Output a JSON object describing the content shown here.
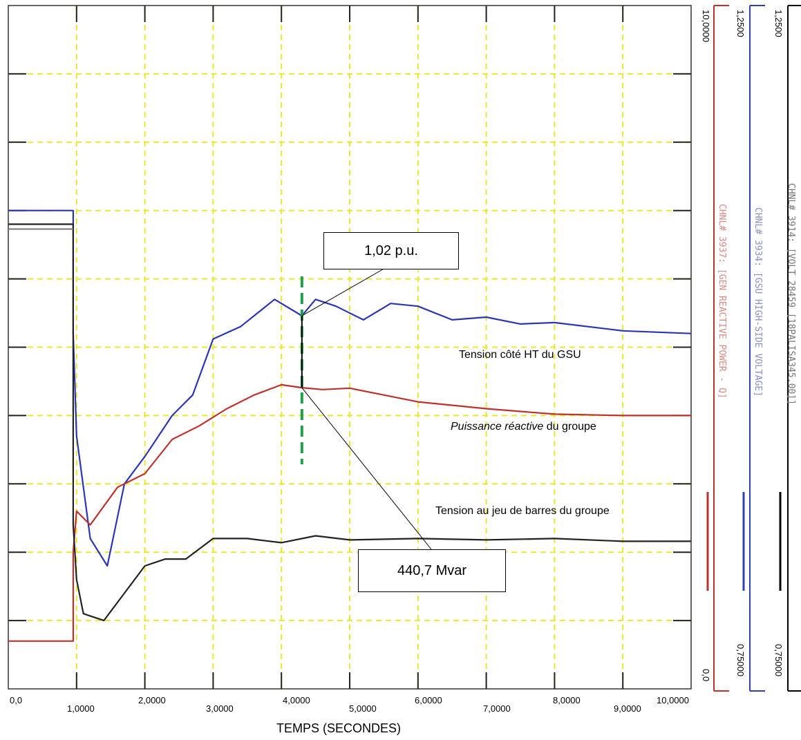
{
  "chart_data": {
    "type": "line",
    "xlabel": "TEMPS (SECONDES)",
    "xlim": [
      0,
      10
    ],
    "x_ticks": [
      "0,0",
      "1,0000",
      "2,0000",
      "3,0000",
      "4,0000",
      "5,0000",
      "6,0000",
      "7,0000",
      "8,0000",
      "9,0000",
      "10,0000"
    ],
    "grid": true,
    "y_axes": [
      {
        "channel_label": "CHNL# 3937: [GEN REACTIVE POWER - Q]",
        "min_label": "0,0",
        "max_label": "10,0000",
        "color": "#c0302a"
      },
      {
        "channel_label": "CHNL# 3934: [GSU HIGH-SIDE VOLTAGE]",
        "min_label": "0,75000",
        "max_label": "1,2500",
        "color": "#3040b8"
      },
      {
        "channel_label": "CHNL# 3914: [VOLT 28459 [18PALISA345.00]]",
        "min_label": "0,75000",
        "max_label": "1,2500",
        "color": "#000000"
      }
    ],
    "series": [
      {
        "color": "#2a35b5",
        "x": [
          0,
          0.95,
          0.95,
          1.0,
          1.2,
          1.45,
          1.7,
          2.0,
          2.4,
          2.7,
          3.0,
          3.4,
          3.9,
          4.3,
          4.5,
          4.8,
          5.2,
          5.6,
          6.0,
          6.5,
          7.0,
          7.5,
          8.0,
          9.0,
          10.0
        ],
        "y": [
          1.1,
          1.1,
          1.01,
          0.935,
          0.86,
          0.84,
          0.9,
          0.92,
          0.95,
          0.965,
          1.006,
          1.015,
          1.035,
          1.023,
          1.035,
          1.03,
          1.02,
          1.032,
          1.03,
          1.02,
          1.022,
          1.017,
          1.018,
          1.012,
          1.01
        ]
      },
      {
        "color": "#c0302a",
        "x": [
          0,
          0.95,
          0.95,
          1.0,
          1.2,
          1.6,
          2.0,
          2.4,
          2.8,
          3.2,
          3.6,
          4.0,
          4.3,
          4.6,
          5.0,
          5.5,
          6.0,
          7.0,
          8.0,
          9.0,
          10.0
        ],
        "y": [
          0.7,
          0.7,
          2.0,
          2.6,
          2.4,
          2.95,
          3.15,
          3.65,
          3.9,
          4.5,
          5.05,
          4.35,
          4.4,
          4.3,
          4.4,
          4.25,
          4.2,
          3.95,
          4.05,
          4.0,
          4.0
        ],
        "y_display": [
          0.7,
          0.7,
          2.0,
          2.6,
          2.4,
          2.95,
          3.15,
          3.65,
          3.85,
          4.1,
          4.3,
          4.45,
          4.407,
          4.38,
          4.4,
          4.3,
          4.2,
          4.1,
          4.02,
          4.0,
          4.0
        ]
      },
      {
        "color": "#222222",
        "x": [
          0,
          0.95,
          0.95,
          1.0,
          1.1,
          1.4,
          1.7,
          2.0,
          2.3,
          2.6,
          3.0,
          3.5,
          4.0,
          4.5,
          5.0,
          6.0,
          7.0,
          8.0,
          9.0,
          10.0
        ],
        "y": [
          1.09,
          1.09,
          0.87,
          0.83,
          0.805,
          0.8,
          0.82,
          0.84,
          0.845,
          0.845,
          0.86,
          0.86,
          0.857,
          0.862,
          0.859,
          0.86,
          0.859,
          0.86,
          0.858,
          0.858
        ]
      }
    ],
    "cursor_x": 4.3
  },
  "annotations": {
    "voltage_callout": "1,02 p.u.",
    "mvar_callout": "440,7 Mvar"
  },
  "curve_labels": {
    "gsu": "Tension côté HT du GSU",
    "reactive_italic": "Puissance réactive",
    "reactive_rest": " du groupe",
    "bus": "Tension au jeu de barres du groupe"
  },
  "colors": {
    "grid": "#e8e832",
    "cursor": "#1ea04a",
    "red_axis": "#c0302a",
    "blue_axis": "#3040b8",
    "black_axis": "#000000"
  }
}
